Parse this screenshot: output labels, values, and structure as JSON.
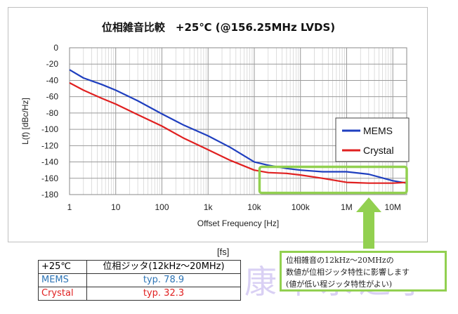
{
  "chart_data": {
    "type": "line",
    "title": "位相雑音比較　+25℃ (@156.25MHz LVDS)",
    "xlabel": "Offset Frequency [Hz]",
    "ylabel": "L(f) [dBc/Hz]",
    "x_scale": "log",
    "xlim": [
      1,
      20000000
    ],
    "ylim": [
      -180,
      0
    ],
    "x_ticks": [
      1,
      10,
      100,
      1000,
      10000,
      100000,
      1000000,
      10000000
    ],
    "x_tick_labels": [
      "1",
      "10",
      "100",
      "1k",
      "10k",
      "100k",
      "1M",
      "10M"
    ],
    "y_ticks": [
      0,
      -20,
      -40,
      -60,
      -80,
      -100,
      -120,
      -140,
      -160,
      -180
    ],
    "y_tick_labels": [
      "0",
      "-20",
      "-40",
      "-60",
      "-80",
      "-100",
      "-120",
      "-140",
      "-160",
      "-180"
    ],
    "grid": true,
    "legend_position": "right",
    "series": [
      {
        "name": "MEMS",
        "color": "#1f3fbf",
        "x": [
          1,
          2,
          5,
          10,
          30,
          100,
          300,
          1000,
          3000,
          10000,
          20000,
          50000,
          100000,
          300000,
          1000000,
          3000000,
          10000000,
          20000000
        ],
        "y": [
          -27,
          -37,
          -45,
          -52,
          -65,
          -81,
          -95,
          -108,
          -122,
          -140,
          -144,
          -148,
          -150,
          -152,
          -152,
          -155,
          -163,
          -166
        ]
      },
      {
        "name": "Crystal",
        "color": "#e02020",
        "x": [
          1,
          2,
          5,
          10,
          30,
          100,
          300,
          1000,
          3000,
          10000,
          20000,
          50000,
          100000,
          300000,
          1000000,
          3000000,
          10000000,
          20000000
        ],
        "y": [
          -43,
          -52,
          -62,
          -69,
          -82,
          -96,
          -111,
          -125,
          -138,
          -150,
          -153,
          -154,
          -156,
          -160,
          -165,
          -166,
          -166,
          -165
        ]
      }
    ],
    "highlight_box": {
      "x_range": [
        13000,
        20000000
      ],
      "y_range": [
        -146,
        -178
      ],
      "color": "#92d050"
    }
  },
  "jitter_table": {
    "units": "[fs]",
    "header_temp": "+25℃",
    "header_metric": "位相ジッタ(12kHz～20MHz)",
    "rows": [
      {
        "name": "MEMS",
        "value": "typ. 78.9",
        "color": "#2e75b6"
      },
      {
        "name": "Crystal",
        "value": "typ. 32.3",
        "color": "#e02020"
      }
    ]
  },
  "callout": {
    "line1": "位相雑音の12kHz～20MHzの",
    "line2": "数値が位相ジッタ特性に影響します",
    "line3": "(値が低い程ジッタ特性がよい)"
  },
  "watermark": "康華永之子"
}
